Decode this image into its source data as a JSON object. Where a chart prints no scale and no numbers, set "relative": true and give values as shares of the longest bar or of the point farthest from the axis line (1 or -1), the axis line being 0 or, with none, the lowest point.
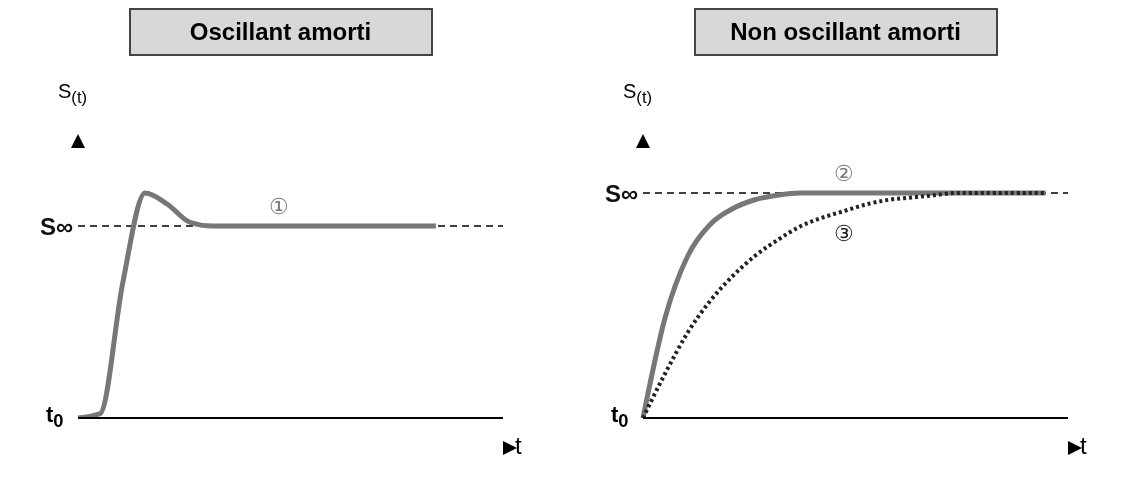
{
  "chart_data": [
    {
      "type": "line",
      "title": "Oscillant amorti",
      "ylabel": "S$_{(t)}$",
      "xlabel": "t",
      "relative": true,
      "annotations": [
        "t$_{0}$"
      ],
      "categories": [
        null,
        null,
        null,
        null,
        null,
        null,
        null,
        null,
        null,
        null,
        null,
        null,
        null,
        null,
        null,
        null,
        null,
        null,
        null,
        null
      ],
      "series": [
        {
          "name": "①",
          "color": "#777777",
          "values": [
            0,
            0.02,
            0.6,
            1,
            0.95,
            0.87,
            0.853,
            0.853,
            0.853,
            0.853,
            0.853,
            0.853,
            0.853,
            0.853,
            0.853,
            0.853,
            0.853,
            null,
            null,
            null
          ]
        }
      ],
      "ref_lines": [
        {
          "axis": "y",
          "value": 0.853,
          "label": "S∞",
          "line_style": "dashed",
          "color": "#000000"
        }
      ],
      "line_style": "solid",
      "marker": "none",
      "grid": false,
      "legend": false
    },
    {
      "type": "line",
      "title": "Non oscillant amorti",
      "ylabel": "S$_{(t)}$",
      "xlabel": "t",
      "relative": true,
      "annotations": [
        "t$_{0}$"
      ],
      "categories": [
        null,
        null,
        null,
        null,
        null,
        null,
        null,
        null,
        null,
        null,
        null,
        null,
        null,
        null,
        null,
        null,
        null,
        null,
        null,
        null
      ],
      "series": [
        {
          "name": "②",
          "color": "#777777",
          "values": [
            0,
            0.45,
            0.72,
            0.86,
            0.93,
            0.97,
            0.99,
            1,
            1,
            1,
            1,
            1,
            1,
            1,
            1,
            1,
            1,
            1,
            1,
            null
          ]
        },
        {
          "name": "③",
          "color": "#222222",
          "line_style": "dotted",
          "values": [
            0,
            0.2,
            0.38,
            0.52,
            0.63,
            0.72,
            0.79,
            0.85,
            0.89,
            0.92,
            0.95,
            0.97,
            0.98,
            0.99,
            1,
            1,
            1,
            1,
            1,
            null
          ]
        }
      ],
      "ref_lines": [
        {
          "axis": "y",
          "value": 1,
          "label": "S∞",
          "line_style": "dashed",
          "color": "#000000"
        }
      ],
      "line_style": "solid",
      "marker": "none",
      "grid": false,
      "legend": false
    }
  ]
}
